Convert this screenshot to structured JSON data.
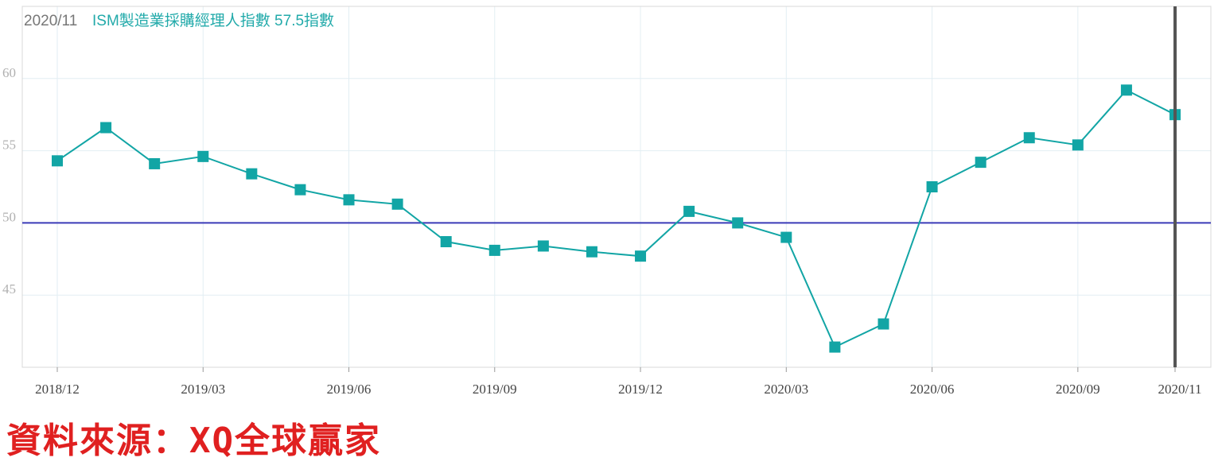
{
  "header": {
    "date": "2020/11",
    "series_label": "ISM製造業採購經理人指數 57.5指數"
  },
  "source_text": "資料來源：XQ全球贏家",
  "colors": {
    "series": "#12a5a5",
    "reference_line": "#3a3ab8",
    "cursor_line": "#555555",
    "grid": "#e2eef3"
  },
  "chart_data": {
    "type": "line",
    "title": "",
    "xlabel": "",
    "ylabel": "",
    "ylim": [
      40,
      65
    ],
    "yticks": [
      45,
      50,
      55,
      60
    ],
    "reference_line": 50,
    "cursor_at": "2020/11",
    "grid": true,
    "x": [
      "2018/12",
      "2019/01",
      "2019/02",
      "2019/03",
      "2019/04",
      "2019/05",
      "2019/06",
      "2019/07",
      "2019/08",
      "2019/09",
      "2019/10",
      "2019/11",
      "2019/12",
      "2020/01",
      "2020/02",
      "2020/03",
      "2020/04",
      "2020/05",
      "2020/06",
      "2020/07",
      "2020/08",
      "2020/09",
      "2020/10",
      "2020/11"
    ],
    "xtick_labels": [
      "2018/12",
      "2019/03",
      "2019/06",
      "2019/09",
      "2019/12",
      "2020/03",
      "2020/06",
      "2020/09",
      "2020/11"
    ],
    "series": [
      {
        "values": [
          54.3,
          56.6,
          54.1,
          54.6,
          53.4,
          52.3,
          51.6,
          51.3,
          48.7,
          48.1,
          48.4,
          48.0,
          47.7,
          50.8,
          50.0,
          49.0,
          41.4,
          43.0,
          52.5,
          54.2,
          55.9,
          55.4,
          59.2,
          57.5
        ]
      }
    ]
  }
}
